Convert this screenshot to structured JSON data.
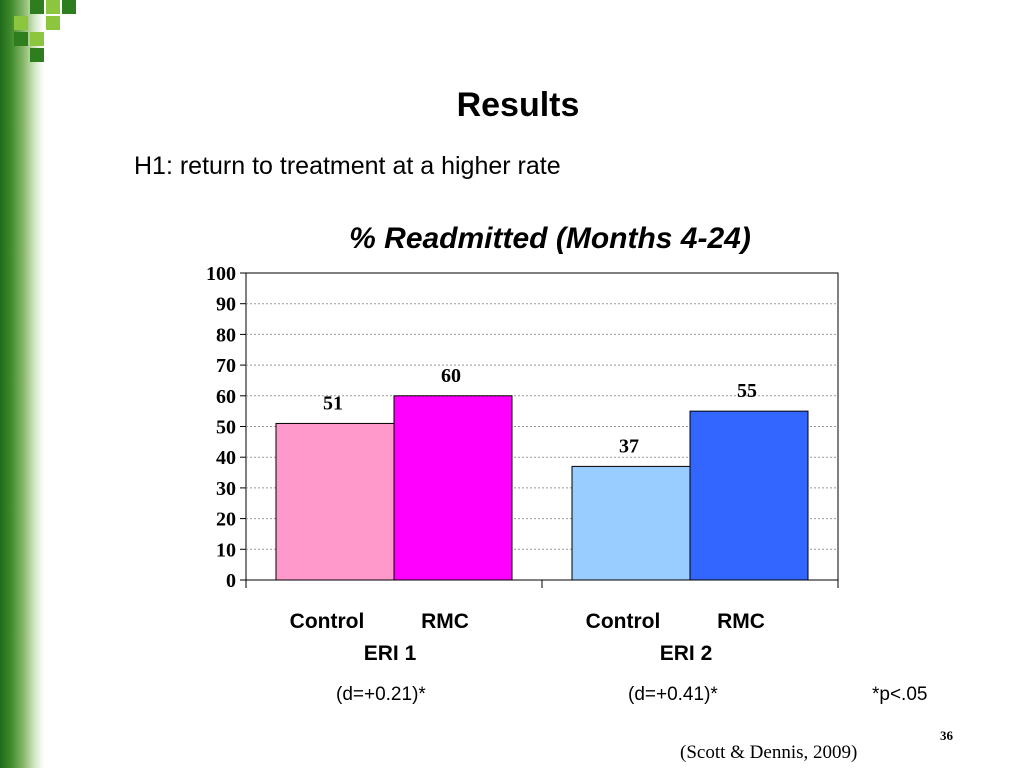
{
  "slide": {
    "title": "Results",
    "subtitle": "H1: return to treatment at a higher rate",
    "footnotes": [
      "(d=+0.21)*",
      "(d=+0.41)*",
      "*p<.05"
    ],
    "page_number": "36",
    "citation": "(Scott & Dennis, 2009)"
  },
  "chart_data": {
    "type": "bar",
    "title": "% Readmitted (Months 4-24)",
    "groups": [
      "ERI 1",
      "ERI 2"
    ],
    "categories": [
      "Control",
      "RMC",
      "Control",
      "RMC"
    ],
    "values": [
      51,
      60,
      37,
      55
    ],
    "colors": [
      "#ff99cc",
      "#ff00ff",
      "#99ccff",
      "#3366ff"
    ],
    "ylim": [
      0,
      100
    ],
    "yticks": [
      0,
      10,
      20,
      30,
      40,
      50,
      60,
      70,
      80,
      90,
      100
    ],
    "grid": true,
    "legend": "none"
  }
}
